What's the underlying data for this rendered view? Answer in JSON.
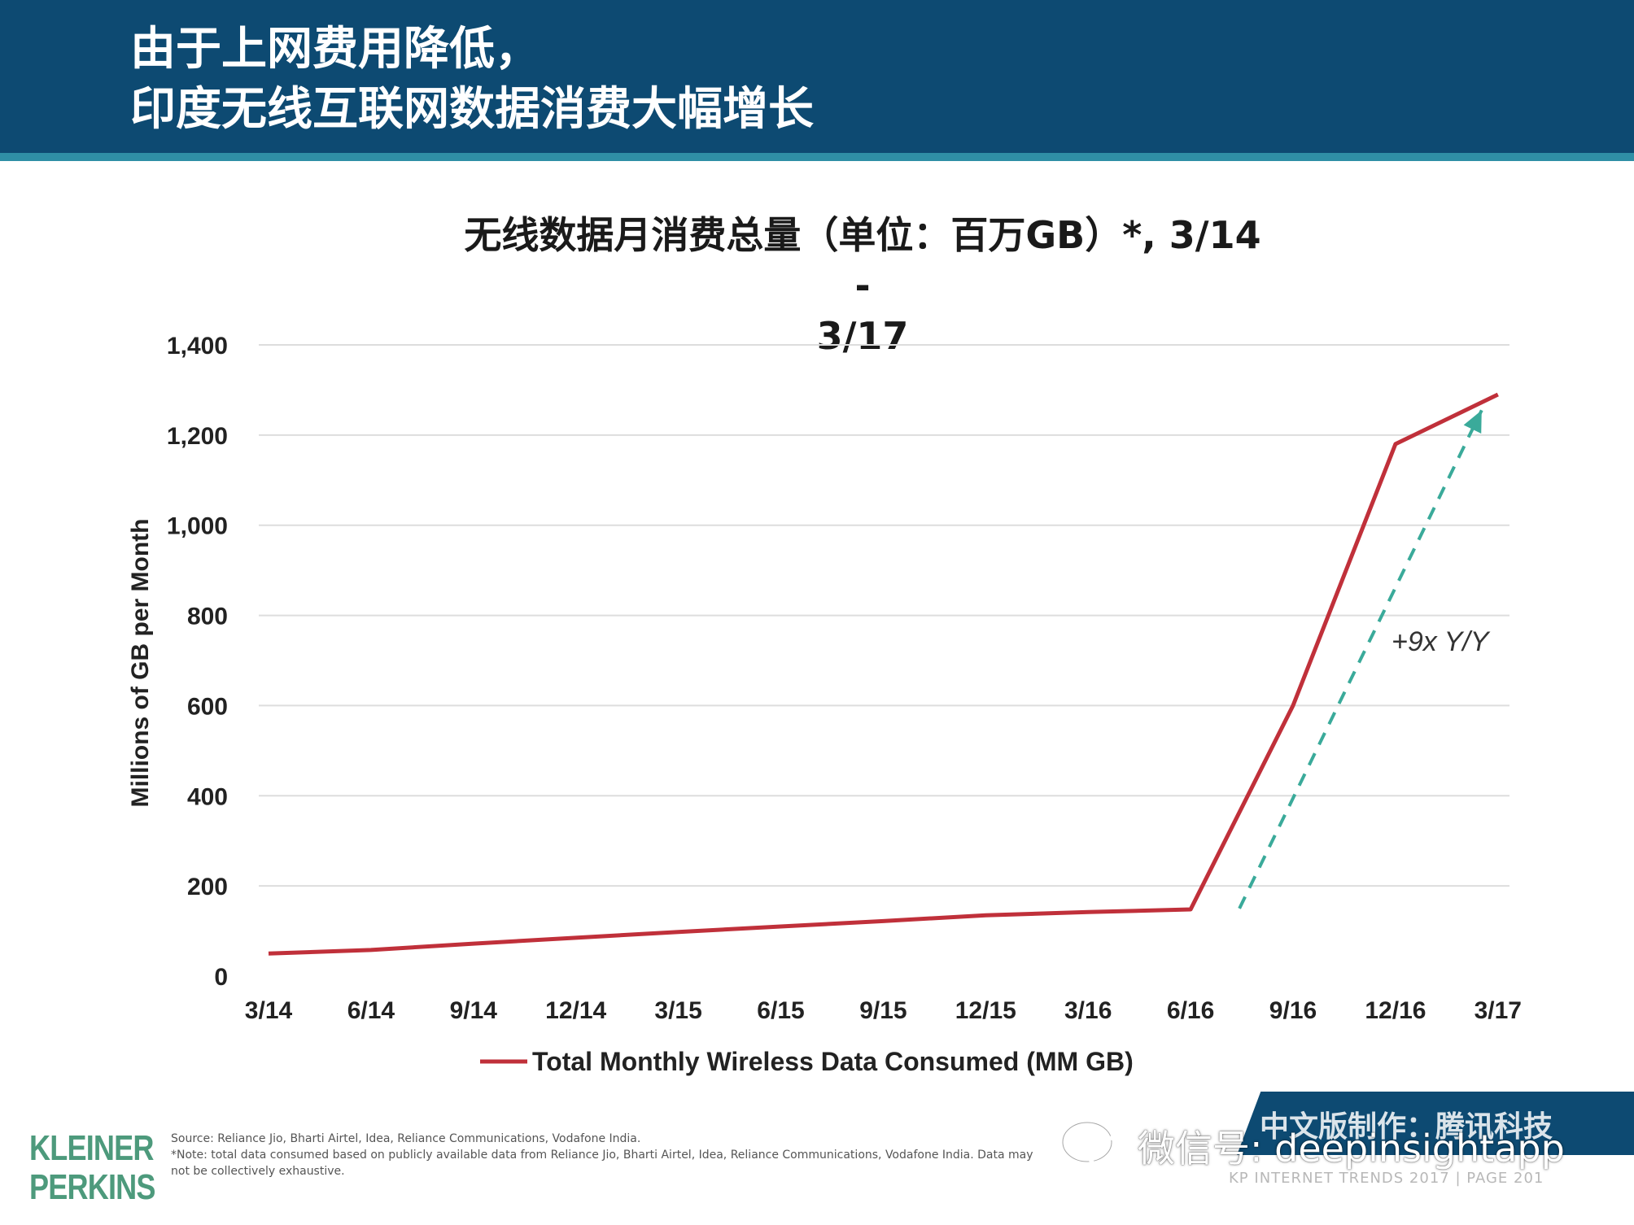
{
  "header": {
    "title": "由于上网费用降低，\n印度无线互联网数据消费大幅增长"
  },
  "chart_data": {
    "type": "line",
    "title": "无线数据月消费总量（单位：百万GB）*, 3/14 -\n3/17",
    "ylabel": "Millions of GB per Month",
    "xlabel": "",
    "categories": [
      "3/14",
      "6/14",
      "9/14",
      "12/14",
      "3/15",
      "6/15",
      "9/15",
      "12/15",
      "3/16",
      "6/16",
      "9/16",
      "12/16",
      "3/17"
    ],
    "ylim": [
      0,
      1400
    ],
    "yticks": [
      0,
      200,
      400,
      600,
      800,
      1000,
      1200,
      1400
    ],
    "ytick_labels": [
      "0",
      "200",
      "400",
      "600",
      "800",
      "1,000",
      "1,200",
      "1,400"
    ],
    "grid": true,
    "legend_position": "bottom",
    "series": [
      {
        "name": "Total Monthly Wireless Data Consumed (MM GB)",
        "color": "#c0303a",
        "values": [
          50,
          58,
          72,
          85,
          98,
          110,
          122,
          135,
          142,
          148,
          600,
          1180,
          1290
        ]
      }
    ],
    "annotations": [
      {
        "text": "+9x Y/Y",
        "style": "dashed-arrow",
        "color": "#3aaa9a",
        "from": {
          "x": "6/16",
          "y": 150
        },
        "to": {
          "x": "3/17",
          "y": 1255
        }
      }
    ]
  },
  "footer": {
    "logo": "KLEINER\nPERKINS",
    "source": "Source: Reliance Jio, Bharti Airtel, Idea, Reliance Communications, Vodafone India.",
    "note": "*Note: total data consumed based on publicly available data from Reliance Jio, Bharti Airtel, Idea, Reliance Communications, Vodafone India. Data may",
    "note2": "not be collectively exhaustive.",
    "banner": "中文版制作：腾讯科技",
    "page_info": "KP INTERNET TRENDS 2017  |  PAGE 201",
    "wechat": "微信号: deepinsightapp"
  },
  "colors": {
    "header_bg": "#0d4a72",
    "line": "#c0303a",
    "arrow": "#3aaa9a",
    "grid": "#dddddd"
  }
}
